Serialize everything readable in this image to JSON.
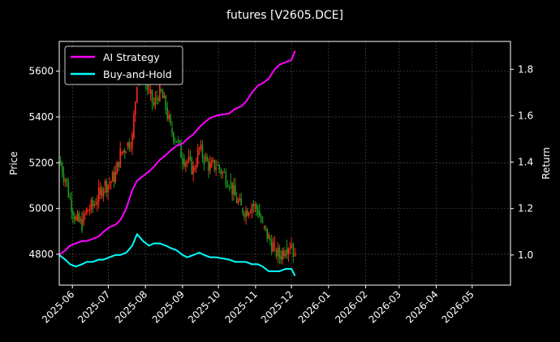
{
  "chart_data": {
    "type": "line",
    "subtype": "candlestick + dual-axis line",
    "title": "futures [V2605.DCE]",
    "xlabel": "",
    "ylabel": "Price",
    "ylabel_right": "Return",
    "grid": true,
    "legend_position": "upper left",
    "background": "#000000",
    "x_ticks": [
      "2025-06",
      "2025-07",
      "2025-08",
      "2025-09",
      "2025-10",
      "2025-11",
      "2025-12",
      "2026-01",
      "2026-02",
      "2026-03",
      "2026-04",
      "2026-05"
    ],
    "y_ticks_left": [
      4800,
      5000,
      5200,
      5400,
      5600
    ],
    "y_ticks_right": [
      1.0,
      1.2,
      1.4,
      1.6,
      1.8
    ],
    "ylim_left": [
      4665,
      5730
    ],
    "ylim_right": [
      0.87,
      1.92
    ],
    "xlim": [
      "2025-05-21",
      "2026-06-02"
    ],
    "legend": [
      {
        "label": "AI Strategy",
        "color": "#ff00ff"
      },
      {
        "label": "Buy-and-Hold",
        "color": "#00ffff"
      }
    ],
    "candle_colors": {
      "up": "#ff2a1a",
      "down": "#1f9a1f"
    },
    "price_series": {
      "name": "V2605.DCE close (approx)",
      "x": [
        "2025-05-21",
        "2025-05-26",
        "2025-05-30",
        "2025-06-04",
        "2025-06-09",
        "2025-06-13",
        "2025-06-18",
        "2025-06-23",
        "2025-06-27",
        "2025-07-02",
        "2025-07-07",
        "2025-07-11",
        "2025-07-16",
        "2025-07-21",
        "2025-07-25",
        "2025-07-30",
        "2025-08-04",
        "2025-08-08",
        "2025-08-13",
        "2025-08-18",
        "2025-08-22",
        "2025-08-27",
        "2025-09-01",
        "2025-09-05",
        "2025-09-10",
        "2025-09-15",
        "2025-09-19",
        "2025-09-24",
        "2025-09-29",
        "2025-10-10",
        "2025-10-15",
        "2025-10-20",
        "2025-10-24",
        "2025-10-29",
        "2025-11-03",
        "2025-11-07",
        "2025-11-12",
        "2025-11-17",
        "2025-11-21",
        "2025-11-26",
        "2025-12-01",
        "2025-12-04"
      ],
      "values": [
        5210,
        5130,
        5040,
        4950,
        4930,
        4990,
        5010,
        5060,
        5100,
        5110,
        5150,
        5240,
        5270,
        5310,
        5560,
        5600,
        5500,
        5450,
        5520,
        5440,
        5350,
        5300,
        5220,
        5210,
        5170,
        5260,
        5220,
        5180,
        5190,
        5120,
        5050,
        5000,
        4990,
        5020,
        4990,
        4920,
        4870,
        4820,
        4790,
        4830,
        4850,
        4780
      ]
    },
    "series": [
      {
        "name": "AI Strategy",
        "axis": "right",
        "color": "#ff00ff",
        "x": [
          "2025-05-21",
          "2025-05-26",
          "2025-05-30",
          "2025-06-04",
          "2025-06-09",
          "2025-06-13",
          "2025-06-18",
          "2025-06-23",
          "2025-06-27",
          "2025-07-02",
          "2025-07-07",
          "2025-07-11",
          "2025-07-16",
          "2025-07-21",
          "2025-07-25",
          "2025-07-30",
          "2025-08-04",
          "2025-08-08",
          "2025-08-13",
          "2025-08-18",
          "2025-08-22",
          "2025-08-27",
          "2025-09-01",
          "2025-09-05",
          "2025-09-10",
          "2025-09-15",
          "2025-09-19",
          "2025-09-24",
          "2025-09-29",
          "2025-10-10",
          "2025-10-15",
          "2025-10-20",
          "2025-10-24",
          "2025-10-29",
          "2025-11-03",
          "2025-11-07",
          "2025-11-12",
          "2025-11-17",
          "2025-11-21",
          "2025-11-26",
          "2025-12-01",
          "2025-12-04"
        ],
        "values": [
          1.0,
          1.02,
          1.04,
          1.05,
          1.06,
          1.06,
          1.07,
          1.08,
          1.1,
          1.12,
          1.13,
          1.15,
          1.2,
          1.28,
          1.32,
          1.34,
          1.36,
          1.38,
          1.41,
          1.43,
          1.45,
          1.47,
          1.48,
          1.5,
          1.52,
          1.55,
          1.57,
          1.59,
          1.6,
          1.61,
          1.63,
          1.64,
          1.66,
          1.7,
          1.73,
          1.74,
          1.76,
          1.8,
          1.82,
          1.83,
          1.84,
          1.88
        ]
      },
      {
        "name": "Buy-and-Hold",
        "axis": "right",
        "color": "#00ffff",
        "x": [
          "2025-05-21",
          "2025-05-26",
          "2025-05-30",
          "2025-06-04",
          "2025-06-09",
          "2025-06-13",
          "2025-06-18",
          "2025-06-23",
          "2025-06-27",
          "2025-07-02",
          "2025-07-07",
          "2025-07-11",
          "2025-07-16",
          "2025-07-21",
          "2025-07-25",
          "2025-07-30",
          "2025-08-04",
          "2025-08-08",
          "2025-08-13",
          "2025-08-18",
          "2025-08-22",
          "2025-08-27",
          "2025-09-01",
          "2025-09-05",
          "2025-09-10",
          "2025-09-15",
          "2025-09-19",
          "2025-09-24",
          "2025-09-29",
          "2025-10-10",
          "2025-10-15",
          "2025-10-20",
          "2025-10-24",
          "2025-10-29",
          "2025-11-03",
          "2025-11-07",
          "2025-11-12",
          "2025-11-17",
          "2025-11-21",
          "2025-11-26",
          "2025-12-01",
          "2025-12-04"
        ],
        "values": [
          1.0,
          0.98,
          0.96,
          0.95,
          0.96,
          0.97,
          0.97,
          0.98,
          0.98,
          0.99,
          1.0,
          1.0,
          1.01,
          1.04,
          1.09,
          1.06,
          1.04,
          1.05,
          1.05,
          1.04,
          1.03,
          1.02,
          1.0,
          0.99,
          1.0,
          1.01,
          1.0,
          0.99,
          0.99,
          0.98,
          0.97,
          0.97,
          0.97,
          0.96,
          0.96,
          0.95,
          0.93,
          0.93,
          0.93,
          0.94,
          0.94,
          0.91
        ]
      }
    ]
  }
}
